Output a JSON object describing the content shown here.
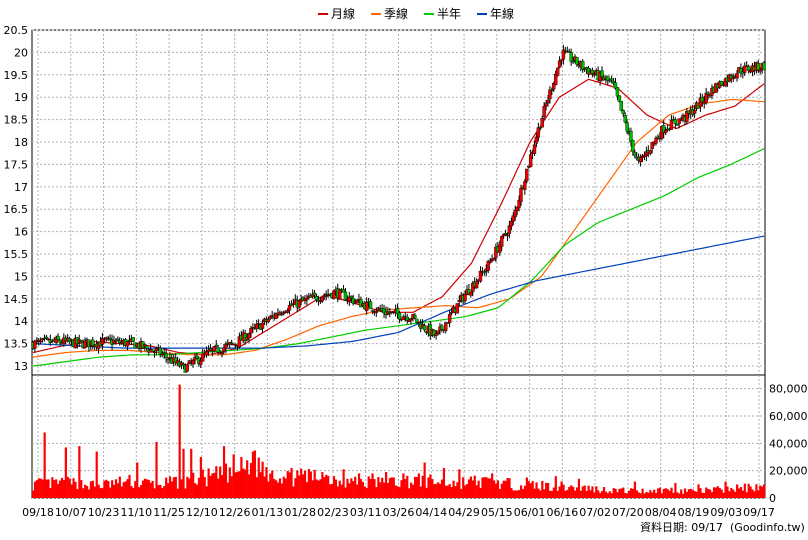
{
  "chart_data": {
    "type": "candlestick_with_volume",
    "legend": [
      {
        "name": "月線",
        "color": "#cc0000"
      },
      {
        "name": "季線",
        "color": "#ff6600"
      },
      {
        "name": "半年",
        "color": "#00cc00"
      },
      {
        "name": "年線",
        "color": "#0044bb"
      }
    ],
    "price_axis": {
      "ylim": [
        12.8,
        20.5
      ],
      "ticks": [
        13,
        13.5,
        14,
        14.5,
        15,
        15.5,
        16,
        16.5,
        17,
        17.5,
        18,
        18.5,
        19,
        19.5,
        20,
        20.5
      ]
    },
    "volume_axis": {
      "ylim": [
        0,
        90000
      ],
      "ticks": [
        0,
        20000,
        40000,
        60000,
        80000
      ],
      "tick_labels": [
        "0",
        "20,000",
        "40,000",
        "60,000",
        "80,000"
      ]
    },
    "x_labels": [
      "09/18",
      "10/07",
      "10/23",
      "11/10",
      "11/25",
      "12/10",
      "12/26",
      "01/13",
      "01/28",
      "02/23",
      "03/11",
      "03/26",
      "04/14",
      "04/29",
      "05/15",
      "06/01",
      "06/16",
      "07/02",
      "07/20",
      "08/04",
      "08/19",
      "09/03",
      "09/17"
    ],
    "trend_knots": [
      13.5,
      13.55,
      13.5,
      13.55,
      13.5,
      13.3,
      12.95,
      13.3,
      13.5,
      13.9,
      14.3,
      14.5,
      14.65,
      14.4,
      14.2,
      14.1,
      13.65,
      14.5,
      15.2,
      16.2,
      18.2,
      20.0,
      19.6,
      19.3,
      17.5,
      18.3,
      18.6,
      19.2,
      19.6,
      19.7
    ],
    "ma_month": [
      13.3,
      13.45,
      13.55,
      13.5,
      13.45,
      13.3,
      13.25,
      13.4,
      13.8,
      14.2,
      14.6,
      14.4,
      14.2,
      14.2,
      14.55,
      15.3,
      16.6,
      18.0,
      19.0,
      19.4,
      19.2,
      18.6,
      18.3,
      18.6,
      18.8,
      19.3
    ],
    "ma_quarter": [
      13.2,
      13.3,
      13.35,
      13.35,
      13.3,
      13.25,
      13.25,
      13.35,
      13.6,
      13.9,
      14.1,
      14.25,
      14.3,
      14.35,
      14.3,
      14.5,
      15.0,
      16.0,
      17.0,
      18.0,
      18.6,
      18.85,
      18.95,
      18.9
    ],
    "ma_half": [
      13.0,
      13.1,
      13.2,
      13.25,
      13.25,
      13.3,
      13.35,
      13.4,
      13.5,
      13.65,
      13.8,
      13.9,
      14.0,
      14.1,
      14.3,
      14.9,
      15.7,
      16.2,
      16.5,
      16.8,
      17.2,
      17.5,
      17.85
    ],
    "ma_year": [
      13.5,
      13.45,
      13.4,
      13.4,
      13.4,
      13.4,
      13.45,
      13.55,
      13.75,
      14.2,
      14.6,
      14.9,
      15.1,
      15.3,
      15.5,
      15.7,
      15.9
    ],
    "volume_profile": [
      10000,
      11000,
      9000,
      12000,
      10000,
      13000,
      17000,
      25000,
      14000,
      16000,
      12000,
      11000,
      13000,
      11000,
      12000,
      10000,
      9000,
      8000,
      6000,
      5000,
      6000,
      5000,
      7000,
      8000
    ],
    "volume_spikes": [
      [
        6,
        48000
      ],
      [
        17,
        37000
      ],
      [
        24,
        38000
      ],
      [
        33,
        34000
      ],
      [
        54,
        26000
      ],
      [
        64,
        41000
      ],
      [
        76,
        83000
      ],
      [
        78,
        36000
      ],
      [
        82,
        36000
      ],
      [
        87,
        30000
      ],
      [
        99,
        38000
      ],
      [
        104,
        32000
      ],
      [
        114,
        34000
      ],
      [
        124,
        20000
      ],
      [
        134,
        22000
      ],
      [
        141,
        20000
      ],
      [
        150,
        19000
      ],
      [
        161,
        21000
      ],
      [
        169,
        18000
      ],
      [
        176,
        18000
      ],
      [
        183,
        19000
      ],
      [
        192,
        18000
      ],
      [
        203,
        26000
      ],
      [
        213,
        22000
      ],
      [
        221,
        21000
      ],
      [
        238,
        18000
      ],
      [
        256,
        15000
      ],
      [
        271,
        16000
      ],
      [
        283,
        14000
      ],
      [
        312,
        12000
      ],
      [
        333,
        11000
      ],
      [
        345,
        10000
      ],
      [
        359,
        12000
      ],
      [
        375,
        10000
      ]
    ],
    "sessions": 380,
    "footer": "資料日期: 09/17",
    "source": "(Goodinfo.tw)"
  }
}
